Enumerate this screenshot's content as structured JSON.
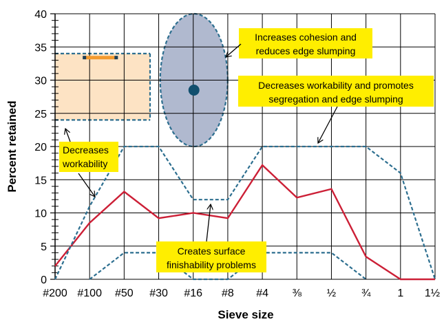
{
  "chart_data": {
    "type": "line",
    "xlabel": "Sieve size",
    "ylabel": "Percent retained",
    "ylim": [
      0,
      40
    ],
    "yticks": [
      "0",
      "5",
      "10",
      "15",
      "20",
      "25",
      "30",
      "35",
      "40"
    ],
    "categories": [
      "#200",
      "#100",
      "#50",
      "#30",
      "#16",
      "#8",
      "#4",
      "⅜",
      "½",
      "¾",
      "1",
      "1½"
    ],
    "grid": true,
    "series": [
      {
        "role": "gradation",
        "style": "solid",
        "color": "#cc1f36",
        "values": [
          2,
          8.5,
          13.2,
          9.2,
          10,
          9.2,
          17.2,
          12.3,
          13.6,
          3.4,
          0,
          0
        ]
      },
      {
        "role": "upper-limit",
        "style": "dashed",
        "color": "#2c6e8f",
        "values": [
          0,
          11,
          20,
          20,
          12,
          12,
          20,
          20,
          20,
          20,
          16,
          0
        ]
      },
      {
        "role": "lower-limit",
        "style": "dashed",
        "color": "#2c6e8f",
        "values": [
          null,
          0,
          4,
          4,
          0,
          0,
          4,
          4,
          4,
          0,
          null,
          null
        ]
      }
    ],
    "colors": {
      "box_fill": "#fde3c4",
      "box_border": "#2c6e8f",
      "ellipse_fill": "#b0b9cf",
      "ellipse_border": "#2c6e8f",
      "marker": "#114f6e",
      "bar": "#f39a2e",
      "note_fill": "#ffee00",
      "grid": "#000000"
    },
    "annotations": [
      {
        "id": "cohesion",
        "lines": [
          "Increases cohesion and",
          "reduces edge slumping"
        ]
      },
      {
        "id": "segregation",
        "lines": [
          "Decreases workability and promotes",
          "segregation and edge slumping"
        ]
      },
      {
        "id": "workability",
        "lines": [
          "Decreases",
          "workability"
        ]
      },
      {
        "id": "finishability",
        "lines": [
          "Creates surface",
          "finishability problems"
        ]
      }
    ]
  }
}
